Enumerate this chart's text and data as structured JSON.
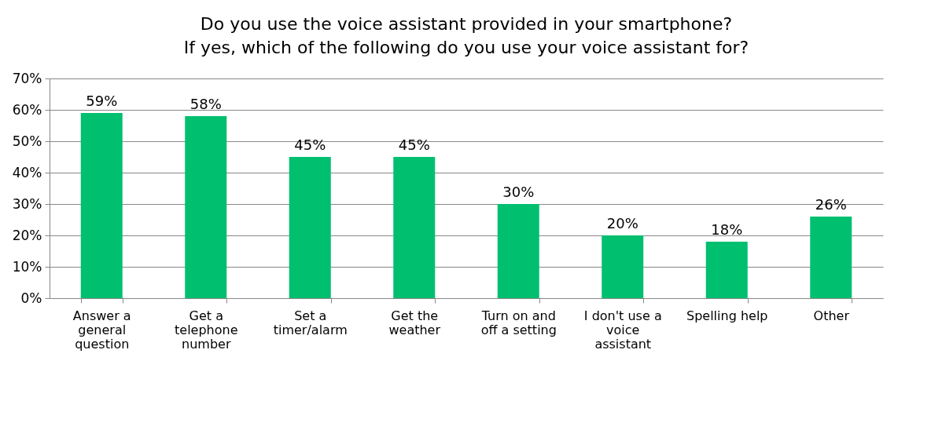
{
  "chart_data": {
    "type": "bar",
    "title": [
      "Do you use the voice assistant provided in your smartphone?",
      "If yes, which of the following do you use your voice assistant for?"
    ],
    "categories": [
      "Answer a general question",
      "Get a telephone number",
      "Set a timer/alarm",
      "Get the weather",
      "Turn on and off a setting",
      "I don't use a voice assistant",
      "Spelling help",
      "Other"
    ],
    "values": [
      59,
      58,
      45,
      45,
      30,
      20,
      18,
      26
    ],
    "value_labels": [
      "59%",
      "58%",
      "45%",
      "45%",
      "30%",
      "20%",
      "18%",
      "26%"
    ],
    "color": "#00bf6f",
    "ylim": [
      0,
      70
    ],
    "yticks": [
      {
        "value": 0,
        "label": "0%"
      },
      {
        "value": 10,
        "label": "10%"
      },
      {
        "value": 20,
        "label": "20%"
      },
      {
        "value": 30,
        "label": "30%"
      },
      {
        "value": 40,
        "label": "40%"
      },
      {
        "value": 50,
        "label": "50%"
      },
      {
        "value": 60,
        "label": "60%"
      },
      {
        "value": 70,
        "label": "70%"
      }
    ],
    "grid": "y"
  }
}
